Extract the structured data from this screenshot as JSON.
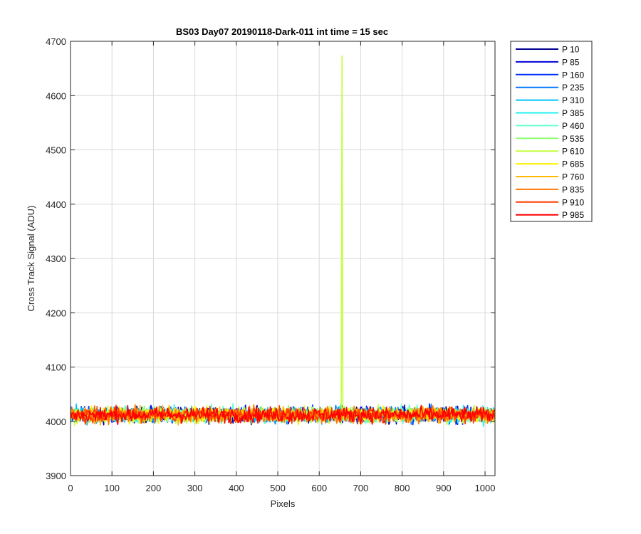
{
  "chart_data": {
    "type": "line",
    "title": "BS03 Day07 20190118-Dark-011 int time = 15 sec",
    "xlabel": "Pixels",
    "ylabel": "Cross Track Signal (ADU)",
    "xlim": [
      0,
      1024
    ],
    "ylim": [
      3900,
      4700
    ],
    "xticks": [
      "0",
      "100",
      "200",
      "300",
      "400",
      "500",
      "600",
      "700",
      "800",
      "900",
      "1000"
    ],
    "yticks": [
      "3900",
      "4000",
      "4100",
      "4200",
      "4300",
      "4400",
      "4500",
      "4600",
      "4700"
    ],
    "grid": true,
    "legend_position": "outside-right",
    "baseline_mean": 4012,
    "noise_amplitude": 14,
    "series": [
      {
        "name": "P 10",
        "color": "#00008F"
      },
      {
        "name": "P 85",
        "color": "#0000D8"
      },
      {
        "name": "P 160",
        "color": "#0030FF"
      },
      {
        "name": "P 235",
        "color": "#0079FF"
      },
      {
        "name": "P 310",
        "color": "#00C2FF"
      },
      {
        "name": "P 385",
        "color": "#20F0F0"
      },
      {
        "name": "P 460",
        "color": "#66FFD0"
      },
      {
        "name": "P 535",
        "color": "#8FFF70"
      },
      {
        "name": "P 610",
        "color": "#C4FF3C",
        "spike": {
          "x": 655,
          "y": 4673
        }
      },
      {
        "name": "P 685",
        "color": "#FFF000"
      },
      {
        "name": "P 760",
        "color": "#FFB900"
      },
      {
        "name": "P 835",
        "color": "#FF7A00"
      },
      {
        "name": "P 910",
        "color": "#FF3A00"
      },
      {
        "name": "P 985",
        "color": "#FF0000"
      }
    ]
  }
}
